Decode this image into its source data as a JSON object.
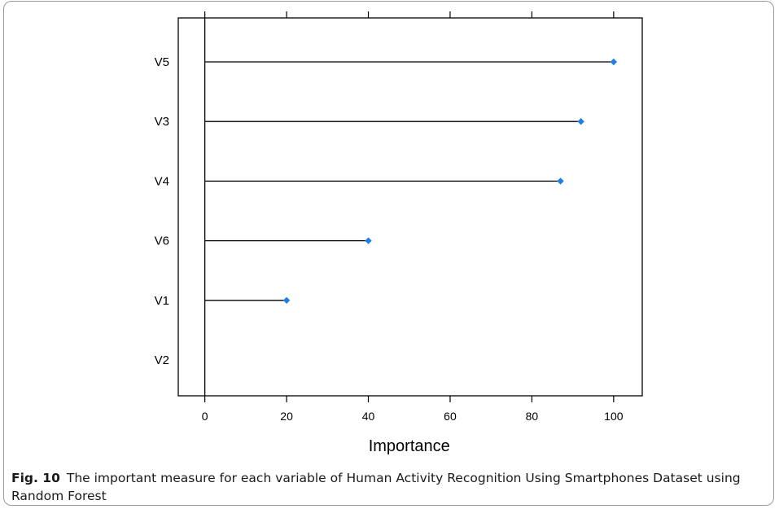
{
  "caption": {
    "label": "Fig. 10",
    "text": "The important measure for each variable of Human Activity Recognition Using Smartphones Dataset using Random Forest"
  },
  "colors": {
    "point": "#1f7fe8",
    "line": "#000000",
    "frame": "#9a9a9a"
  },
  "chart_data": {
    "type": "dot",
    "title": "",
    "xlabel": "Importance",
    "ylabel": "",
    "xlim": [
      -6.5,
      107
    ],
    "xticks": [
      0,
      20,
      40,
      60,
      80,
      100
    ],
    "xtick_labels": [
      "0",
      "20",
      "40",
      "60",
      "80",
      "100"
    ],
    "grid": false,
    "legend": "none",
    "categories": [
      "V5",
      "V3",
      "V4",
      "V6",
      "V1",
      "V2"
    ],
    "values": [
      100,
      92,
      87,
      40,
      20,
      0
    ]
  }
}
